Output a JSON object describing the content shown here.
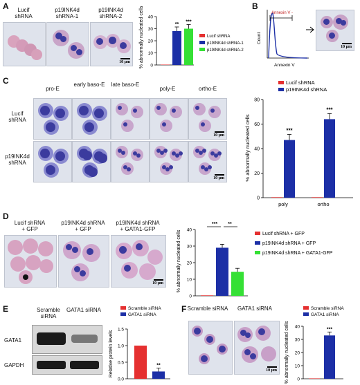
{
  "panels": {
    "A": {
      "letter": "A",
      "images": [
        {
          "label_line1": "Lucif",
          "label_line2": "shRNA"
        },
        {
          "label_line1": "p19INK4d",
          "label_line2": "shRNA-1"
        },
        {
          "label_line1": "p19INK4d",
          "label_line2": "shRNA-2"
        }
      ],
      "scale": "10 μm"
    },
    "B": {
      "letter": "B",
      "gate_label": "Annexin V -",
      "scale": "10 μm"
    },
    "C": {
      "letter": "C",
      "columns": [
        "pro-E",
        "early baso-E",
        "late baso-E",
        "poly-E",
        "ortho-E"
      ],
      "rows": [
        "Lucif shRNA",
        "p19INK4d shRNA"
      ],
      "scale": "10 μm"
    },
    "D": {
      "letter": "D",
      "images": [
        {
          "label_line1": "Lucif shRNA",
          "label_line2": "+ GFP"
        },
        {
          "label_line1": "p19INK4d shRNA",
          "label_line2": "+ GFP"
        },
        {
          "label_line1": "p19INK4d shRNA",
          "label_line2": "+ GATA1-GFP"
        }
      ],
      "scale": "10 μm"
    },
    "E": {
      "letter": "E",
      "wb_headers": [
        "Scramble siRNA",
        "GATA1 siRNA"
      ],
      "wb_rows": [
        "GATA1",
        "GAPDH"
      ]
    },
    "F": {
      "letter": "F",
      "images": [
        {
          "label": "Scramble siRNA"
        },
        {
          "label": "GATA1 siRNA"
        }
      ],
      "scale": "10 μm"
    }
  },
  "chart_data": [
    {
      "id": "A",
      "type": "bar",
      "ylabel": "% abnormally nucleated cells",
      "ylim": [
        0,
        40
      ],
      "yticks": [
        0,
        10,
        20,
        30,
        40
      ],
      "series": [
        {
          "name": "Lucif shRNA",
          "value": 0.3,
          "color": "#e53030",
          "sig": ""
        },
        {
          "name": "p19INK4d shRNA-1",
          "value": 28,
          "color": "#1c2fa6",
          "sig": "**"
        },
        {
          "name": "p19INK4d shRNA-2",
          "value": 30,
          "color": "#35e035",
          "sig": "***"
        }
      ],
      "legend": "right"
    },
    {
      "id": "B",
      "type": "line",
      "xlabel": "Annexin V",
      "ylabel": "Count",
      "note": "flow cytometry histogram"
    },
    {
      "id": "C",
      "type": "bar",
      "ylabel": "% abnormally nucleated cells",
      "ylim": [
        0,
        80
      ],
      "yticks": [
        0,
        20,
        40,
        60,
        80
      ],
      "categories": [
        "poly",
        "ortho"
      ],
      "series": [
        {
          "name": "Lucif shRNA",
          "values": [
            0.4,
            0.4
          ],
          "color": "#e53030"
        },
        {
          "name": "p19INK4d shRNA",
          "values": [
            47,
            64
          ],
          "color": "#1c2fa6",
          "sig": [
            "***",
            "***"
          ]
        }
      ],
      "legend": "top"
    },
    {
      "id": "D",
      "type": "bar",
      "ylabel": "% abnormally nucleated cells",
      "ylim": [
        0,
        40
      ],
      "yticks": [
        0,
        10,
        20,
        30,
        40
      ],
      "series": [
        {
          "name": "Lucif shRNA + GFP",
          "value": 0.3,
          "color": "#e53030"
        },
        {
          "name": "p19INK4d shRNA + GFP",
          "value": 29,
          "color": "#1c2fa6"
        },
        {
          "name": "p19INK4d shRNA + GATA1-GFP",
          "value": 14.5,
          "color": "#35e035"
        }
      ],
      "comparisons": [
        "***",
        "**"
      ],
      "legend": "right"
    },
    {
      "id": "E",
      "type": "bar",
      "ylabel": "Relative protein levels",
      "ylim": [
        0,
        1.5
      ],
      "yticks": [
        0.0,
        0.5,
        1.0,
        1.5
      ],
      "series": [
        {
          "name": "Scramble siRNA",
          "value": 1.0,
          "color": "#e53030",
          "sig": ""
        },
        {
          "name": "GATA1 siRNA",
          "value": 0.22,
          "color": "#1c2fa6",
          "sig": "**"
        }
      ],
      "legend": "top"
    },
    {
      "id": "F",
      "type": "bar",
      "ylabel": "% abnormally nucleated cells",
      "ylim": [
        0,
        40
      ],
      "yticks": [
        0,
        10,
        20,
        30,
        40
      ],
      "series": [
        {
          "name": "Scramble siRNA",
          "value": 0.3,
          "color": "#e53030",
          "sig": ""
        },
        {
          "name": "GATA1 siRNA",
          "value": 33,
          "color": "#1c2fa6",
          "sig": "***"
        }
      ],
      "legend": "top"
    }
  ]
}
